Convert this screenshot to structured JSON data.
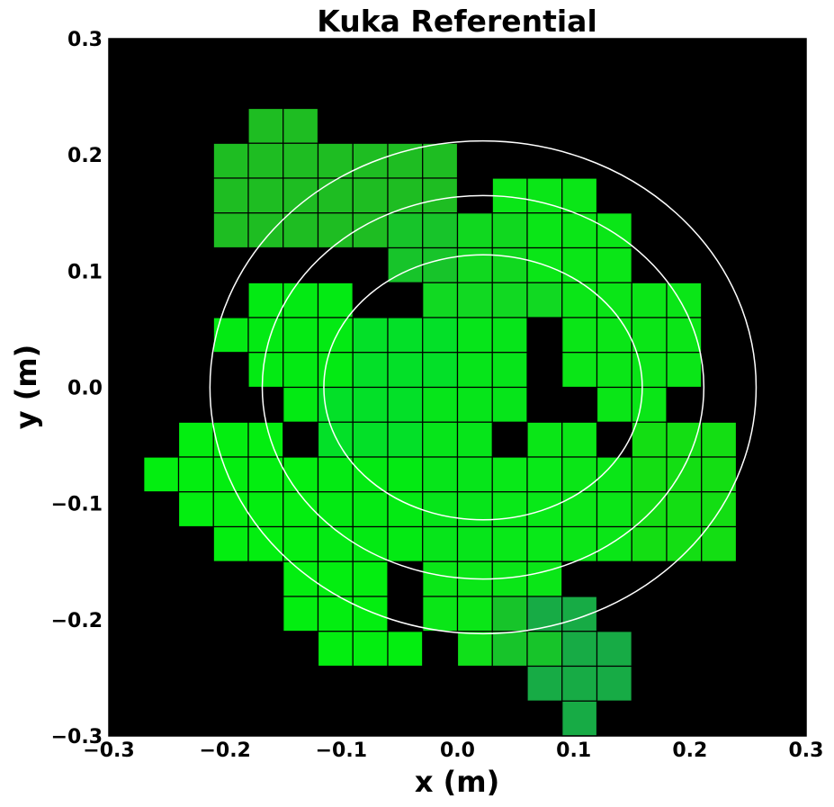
{
  "chart_data": {
    "type": "heatmap",
    "title": "Kuka Referential",
    "xlabel": "x (m)",
    "ylabel": "y (m)",
    "xlim": [
      -0.3,
      0.3
    ],
    "ylim": [
      -0.3,
      0.3
    ],
    "xticks": [
      "−0.3",
      "−0.2",
      "−0.1",
      "0.0",
      "0.1",
      "0.2",
      "0.3"
    ],
    "yticks": [
      "0.3",
      "0.2",
      "0.1",
      "0.0",
      "−0.1",
      "−0.2",
      "−0.3"
    ],
    "background": "#000000",
    "grid": false,
    "cell_size": 0.03,
    "grid_origin": [
      -0.27,
      -0.3
    ],
    "cells": [
      [
        "",
        "",
        "",
        "#1ebd22",
        "#1ebd22",
        "",
        "",
        "",
        "",
        "",
        "",
        "",
        "",
        "",
        "",
        "",
        "",
        ""
      ],
      [
        "",
        "",
        "#1ebd22",
        "#1ebd22",
        "#1ebd22",
        "#1ebd22",
        "#1ebd22",
        "#1ebd22",
        "#1ebd22",
        "",
        "",
        "",
        "",
        "",
        "",
        "",
        "",
        ""
      ],
      [
        "",
        "",
        "#1ebd22",
        "#1ebd22",
        "#1ebd22",
        "#1ebd22",
        "#1ebd22",
        "#1ebd22",
        "#1ebd22",
        "",
        "#0ae617",
        "#0ae617",
        "#0ae617",
        "",
        "",
        "",
        "",
        ""
      ],
      [
        "",
        "",
        "#1ebd22",
        "#1ebd22",
        "#1ebd22",
        "#1ebd22",
        "#1ebd22",
        "#17c42a",
        "#17c42a",
        "#10d81f",
        "#10d81f",
        "#0ae617",
        "#0ae617",
        "#0ae617",
        "",
        "",
        "",
        ""
      ],
      [
        "",
        "",
        "",
        "",
        "",
        "",
        "",
        "#17c42a",
        "#17c42a",
        "#10d81f",
        "#10d81f",
        "#0ae617",
        "#0ae617",
        "#0ae617",
        "",
        "",
        "",
        ""
      ],
      [
        "",
        "",
        "",
        "#03ea13",
        "#03ea13",
        "#03ea13",
        "",
        "",
        "#11d922",
        "#11d922",
        "#11d922",
        "#11d922",
        "#0ae617",
        "#0ae617",
        "#0ae617",
        "#0ae617",
        "",
        ""
      ],
      [
        "",
        "",
        "#03ea13",
        "#03ea13",
        "#03ea13",
        "#03ea13",
        "#03e028",
        "#03e028",
        "#03e028",
        "#06e51a",
        "#06e51a",
        "",
        "#0ae617",
        "#0ae617",
        "#0ae617",
        "#0ae617",
        "",
        ""
      ],
      [
        "",
        "",
        "",
        "#03ea13",
        "#03ea13",
        "#03ea13",
        "#03e028",
        "#03e028",
        "#03e028",
        "#06e51a",
        "#06e51a",
        "",
        "#0ae617",
        "#0ae617",
        "#0ae617",
        "#0ae617",
        "",
        ""
      ],
      [
        "",
        "",
        "",
        "",
        "#03ea13",
        "#03e028",
        "#03e028",
        "#03e028",
        "#06e51a",
        "#06e51a",
        "#06e51a",
        "",
        "",
        "#0ae617",
        "#0ae617",
        "",
        "",
        ""
      ],
      [
        "",
        "#03ee10",
        "#03ee10",
        "#03ee10",
        "",
        "#03e028",
        "#03e028",
        "#03e028",
        "#06e51a",
        "#06e51a",
        "",
        "#0ae617",
        "#0ae617",
        "",
        "#13de13",
        "#13de13",
        "#13de13",
        ""
      ],
      [
        "#03ee10",
        "#03ee10",
        "#03ee10",
        "#03ee10",
        "#03ee10",
        "#03ea13",
        "#03ea13",
        "#03ea13",
        "#06e51a",
        "#06e51a",
        "#08e918",
        "#08e918",
        "#0ae617",
        "#0ae617",
        "#13de13",
        "#13de13",
        "#13de13",
        ""
      ],
      [
        "",
        "#03ee10",
        "#03ee10",
        "#03ee10",
        "#03ee10",
        "#03ea13",
        "#03ea13",
        "#03ea13",
        "#06e51a",
        "#06e51a",
        "#08e918",
        "#08e918",
        "#0ae617",
        "#0ae617",
        "#13de13",
        "#13de13",
        "#13de13",
        ""
      ],
      [
        "",
        "",
        "#03ee10",
        "#03ee10",
        "#03ee10",
        "#03ea13",
        "#03ea13",
        "#03ea13",
        "#06e51a",
        "#06e51a",
        "#08e918",
        "#08e918",
        "#0ae617",
        "#0ae617",
        "#13de13",
        "#13de13",
        "#13de13",
        ""
      ],
      [
        "",
        "",
        "",
        "",
        "#03ee10",
        "#03ee10",
        "#03ee10",
        "",
        "#0ae617",
        "#0ae617",
        "#0ae617",
        "#0ae617",
        "",
        "",
        "",
        "",
        "",
        ""
      ],
      [
        "",
        "",
        "",
        "",
        "#03ee10",
        "#03ee10",
        "#03ee10",
        "",
        "#0ae617",
        "#0ae617",
        "#17c42a",
        "#17ab45",
        "#17ab45",
        "",
        "",
        "",
        "",
        ""
      ],
      [
        "",
        "",
        "",
        "",
        "",
        "#03ee10",
        "#03ee10",
        "#03ee10",
        "",
        "#10e01a",
        "#17c42a",
        "#17c42a",
        "#17ab45",
        "#17ab45",
        "",
        "",
        "",
        ""
      ],
      [
        "",
        "",
        "",
        "",
        "",
        "",
        "",
        "",
        "",
        "",
        "",
        "#17ab45",
        "#17ab45",
        "#17ab45",
        "",
        "",
        "",
        ""
      ],
      [
        "",
        "",
        "",
        "",
        "",
        "",
        "",
        "",
        "",
        "",
        "",
        "",
        "#17ab45",
        "",
        "",
        "",
        "",
        ""
      ]
    ],
    "ellipses": [
      {
        "cx": 0.022,
        "cy": 0.0,
        "rx": 0.137,
        "ry": 0.114
      },
      {
        "cx": 0.022,
        "cy": 0.0,
        "rx": 0.19,
        "ry": 0.165
      },
      {
        "cx": 0.022,
        "cy": 0.0,
        "rx": 0.235,
        "ry": 0.212
      }
    ],
    "ellipse_color": "#ffffff"
  }
}
